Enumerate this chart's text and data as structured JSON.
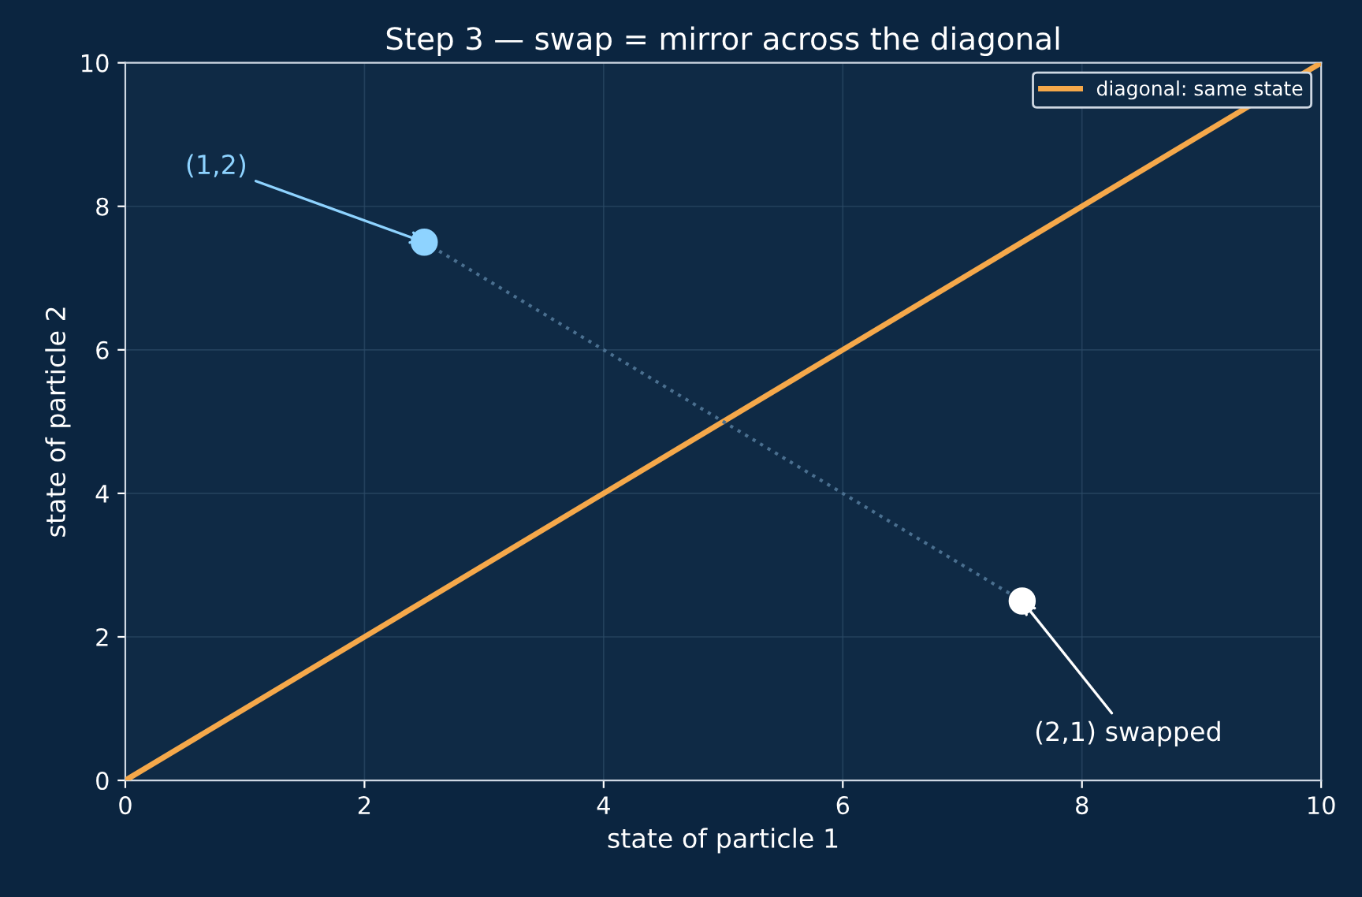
{
  "chart_data": {
    "type": "line",
    "title": "Step 3 — swap = mirror across the diagonal",
    "xlabel": "state of particle 1",
    "ylabel": "state of particle 2",
    "xlim": [
      0,
      10
    ],
    "ylim": [
      0,
      10
    ],
    "xticks": [
      0,
      2,
      4,
      6,
      8,
      10
    ],
    "yticks": [
      0,
      2,
      4,
      6,
      8,
      10
    ],
    "grid": true,
    "legend": "top right",
    "series": [
      {
        "name": "diagonal: same state",
        "type": "line",
        "color": "#f5a84a",
        "x": [
          0,
          10
        ],
        "values": [
          0,
          10
        ],
        "line_style": "solid"
      },
      {
        "type": "line",
        "color": "#4a6f8f",
        "x": [
          2.5,
          7.5
        ],
        "values": [
          7.5,
          2.5
        ],
        "line_style": "dotted"
      },
      {
        "type": "scatter",
        "color": "#8ed3ff",
        "x": [
          2.5
        ],
        "values": [
          7.5
        ],
        "marker": "circle"
      },
      {
        "type": "scatter",
        "color": "#ffffff",
        "x": [
          7.5
        ],
        "values": [
          2.5
        ],
        "marker": "circle"
      }
    ],
    "annotations": [
      {
        "text": "(1,2)",
        "x": 2.5,
        "y": 7.5
      },
      {
        "text": "(2,1) swapped",
        "x": 7.5,
        "y": 2.5
      }
    ]
  }
}
